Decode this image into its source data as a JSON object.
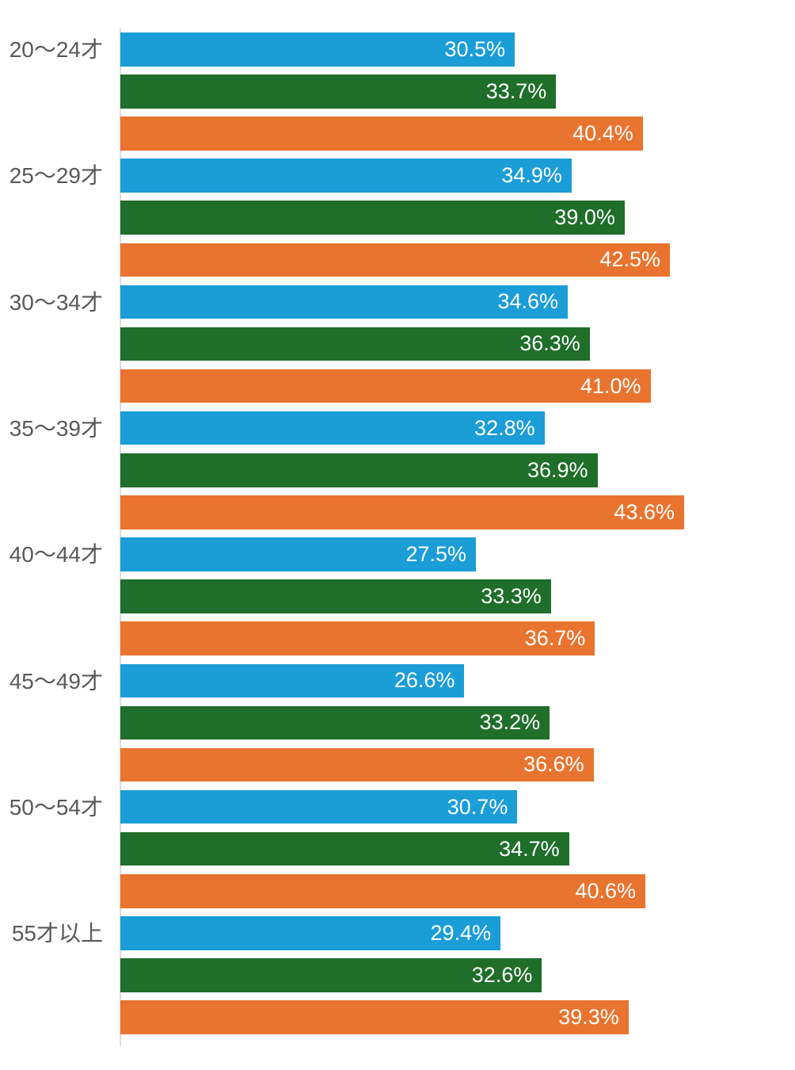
{
  "chart_data": {
    "type": "bar",
    "orientation": "horizontal",
    "title": "",
    "xlabel": "",
    "ylabel": "",
    "xlim": [
      0,
      52.2
    ],
    "grid": false,
    "legend": "none",
    "value_suffix": "%",
    "categories": [
      "20〜24才",
      "25〜29才",
      "30〜34才",
      "35〜39才",
      "40〜44才",
      "45〜49才",
      "50〜54才",
      "55才以上"
    ],
    "series": [
      {
        "name": "blue",
        "color": "#1B9DD8",
        "values": [
          30.5,
          34.9,
          34.6,
          32.8,
          27.5,
          26.6,
          30.7,
          29.4
        ]
      },
      {
        "name": "green",
        "color": "#1F6E2A",
        "values": [
          33.7,
          39.0,
          36.3,
          36.9,
          33.3,
          33.2,
          34.7,
          32.6
        ]
      },
      {
        "name": "orange",
        "color": "#E8742F",
        "values": [
          40.4,
          42.5,
          41.0,
          43.6,
          36.7,
          36.6,
          40.6,
          39.3
        ]
      }
    ],
    "value_labels": [
      [
        "30.5%",
        "33.7%",
        "40.4%"
      ],
      [
        "34.9%",
        "39.0%",
        "42.5%"
      ],
      [
        "34.6%",
        "36.3%",
        "41.0%"
      ],
      [
        "32.8%",
        "36.9%",
        "43.6%"
      ],
      [
        "27.5%",
        "33.3%",
        "36.7%"
      ],
      [
        "26.6%",
        "33.2%",
        "36.6%"
      ],
      [
        "30.7%",
        "34.7%",
        "40.6%"
      ],
      [
        "29.4%",
        "32.6%",
        "39.3%"
      ]
    ]
  },
  "colors": {
    "background": "#FFFFFF",
    "category_label": "#595959",
    "value_label": "#FFFFFF",
    "axis_line": "#DCDCDC",
    "series_blue": "#1B9DD8",
    "series_green": "#1F6E2A",
    "series_orange": "#E8742F"
  }
}
